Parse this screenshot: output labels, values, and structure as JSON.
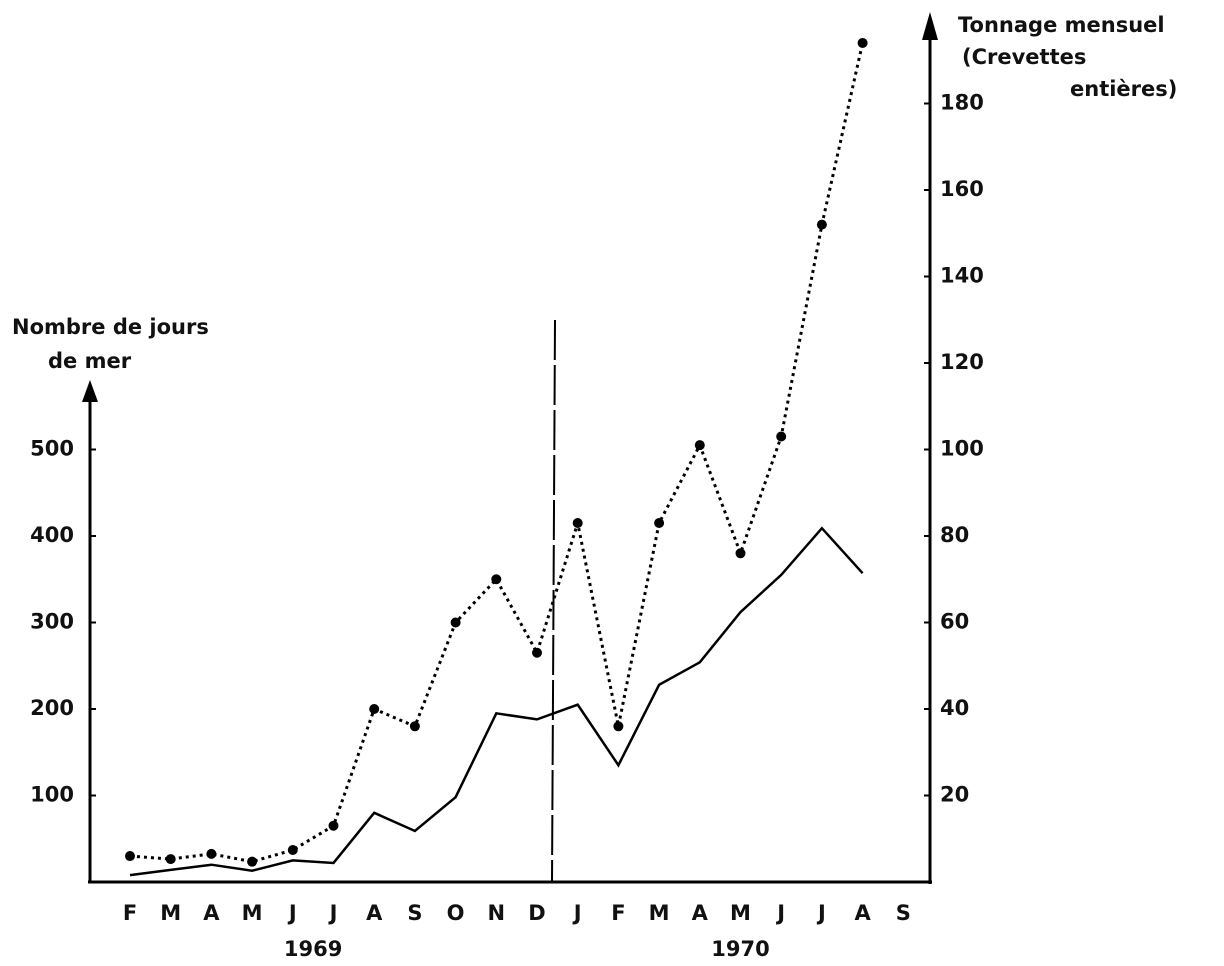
{
  "chart_data": {
    "type": "line",
    "y_label": [
      "Nombre de jours",
      "de mer"
    ],
    "y2_label": [
      "Tonnage mensuel",
      "(Crevettes",
      "entières)"
    ],
    "categories": [
      "F",
      "M",
      "A",
      "M",
      "J",
      "J",
      "A",
      "S",
      "O",
      "N",
      "D",
      "J",
      "F",
      "M",
      "A",
      "M",
      "J",
      "J",
      "A",
      "S"
    ],
    "annotations": [
      "1969",
      "1970"
    ],
    "series": [
      {
        "name": "Nombre de jours de mer",
        "color": "#000000",
        "style": "solid",
        "axis": "y",
        "values": [
          8,
          14,
          20,
          13,
          25,
          22,
          80,
          59,
          98,
          195,
          188,
          205,
          135,
          228,
          254,
          312,
          355,
          409,
          357,
          null
        ]
      },
      {
        "name": "Tonnage mensuel",
        "color": "#000000",
        "style": "dotted",
        "axis": "y2",
        "values": [
          6,
          5.3,
          6.5,
          4.7,
          7.4,
          13,
          40,
          36,
          60,
          70,
          53,
          83,
          36,
          83,
          101,
          76,
          103,
          152,
          194,
          null
        ]
      }
    ],
    "ylim": [
      0,
      1000
    ],
    "yticks": [
      100,
      200,
      300,
      400,
      500
    ],
    "y2lim": [
      0,
      200
    ],
    "y2ticks": [
      20,
      40,
      60,
      80,
      100,
      120,
      140,
      160,
      180
    ],
    "grid": false
  }
}
